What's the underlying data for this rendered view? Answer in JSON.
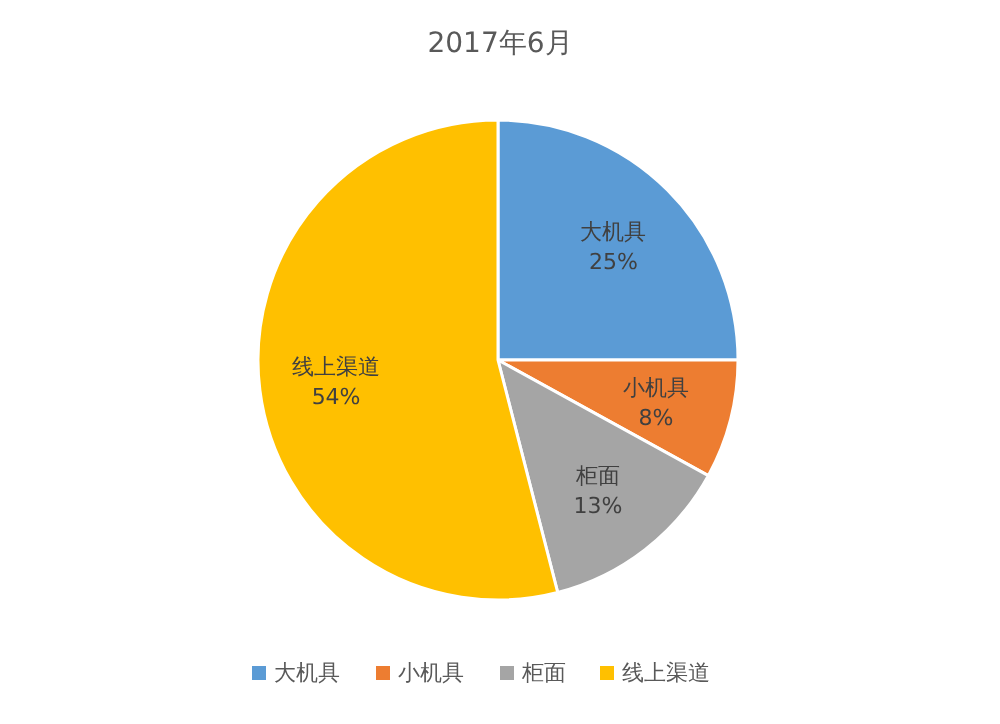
{
  "chart_data": {
    "type": "pie",
    "title": "2017年6月",
    "categories": [
      "大机具",
      "小机具",
      "柜面",
      "线上渠道"
    ],
    "values": [
      25,
      8,
      13,
      54
    ],
    "colors": [
      "#5b9bd5",
      "#ed7d31",
      "#a5a5a5",
      "#ffc000"
    ],
    "value_labels": [
      "25%",
      "8%",
      "13%",
      "54%"
    ],
    "legend": "bottom"
  }
}
